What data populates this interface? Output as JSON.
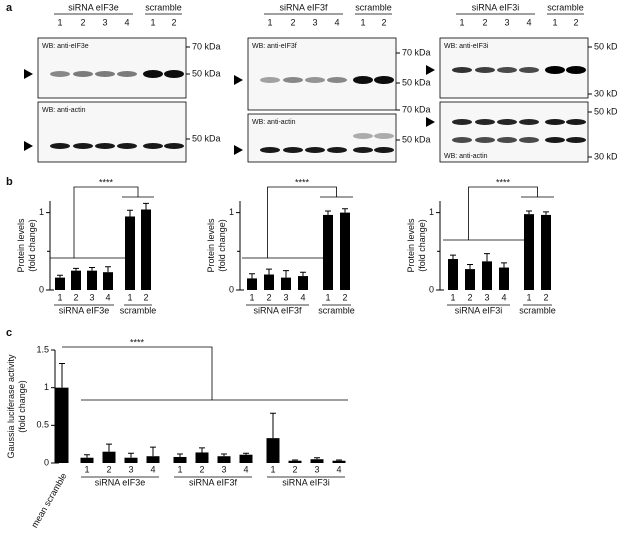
{
  "panel_labels": [
    "a",
    "b",
    "c"
  ],
  "blots": [
    {
      "groups": [
        "siRNA eIF3e",
        "scramble"
      ],
      "lanes": [
        "1",
        "2",
        "3",
        "4",
        "1",
        "2"
      ],
      "top": {
        "wb": "WB: anti-eIF3e",
        "markers": [
          "70 kDa",
          "50 kDa"
        ]
      },
      "bottom": {
        "wb": "WB: anti-actin",
        "markers": [
          "50 kDa"
        ]
      }
    },
    {
      "groups": [
        "siRNA eIF3f",
        "scramble"
      ],
      "lanes": [
        "1",
        "2",
        "3",
        "4",
        "1",
        "2"
      ],
      "top": {
        "wb": "WB: anti-eIF3f",
        "markers": [
          "70 kDa",
          "50 kDa"
        ]
      },
      "bottom": {
        "wb": "WB: anti-actin",
        "markers": [
          "70 kDa",
          "50 kDa"
        ]
      }
    },
    {
      "groups": [
        "siRNA eIF3i",
        "scramble"
      ],
      "lanes": [
        "1",
        "2",
        "3",
        "4",
        "1",
        "2"
      ],
      "top": {
        "wb": "WB: anti-eIF3i",
        "markers": [
          "50 kDa",
          "30 kDa"
        ]
      },
      "bottom": {
        "wb": "WB: anti-actin",
        "markers": [
          "50 kDa",
          "30 kDa"
        ]
      }
    }
  ],
  "chart_data": [
    {
      "type": "bar",
      "ylabel": [
        "Protein levels",
        "(fold change)"
      ],
      "color": "#000000",
      "ylim": [
        0,
        1.15
      ],
      "yticks": [
        0,
        1
      ],
      "minor_yticks": [
        0.5
      ],
      "annotation": "****",
      "groups": [
        {
          "name": "siRNA eIF3e",
          "categories": [
            "1",
            "2",
            "3",
            "4"
          ],
          "values": [
            0.16,
            0.25,
            0.25,
            0.23
          ],
          "errors": [
            0.03,
            0.03,
            0.04,
            0.07
          ]
        },
        {
          "name": "scramble",
          "categories": [
            "1",
            "2"
          ],
          "values": [
            0.95,
            1.04
          ],
          "errors": [
            0.08,
            0.08
          ]
        }
      ]
    },
    {
      "type": "bar",
      "ylabel": [
        "Protein levels",
        "(fold change)"
      ],
      "color": "#000000",
      "ylim": [
        0,
        1.15
      ],
      "yticks": [
        0,
        1
      ],
      "minor_yticks": [
        0.5
      ],
      "annotation": "****",
      "groups": [
        {
          "name": "siRNA eIF3f",
          "categories": [
            "1",
            "2",
            "3",
            "4"
          ],
          "values": [
            0.15,
            0.2,
            0.16,
            0.18
          ],
          "errors": [
            0.06,
            0.07,
            0.09,
            0.05
          ]
        },
        {
          "name": "scramble",
          "categories": [
            "1",
            "2"
          ],
          "values": [
            0.97,
            1.0
          ],
          "errors": [
            0.05,
            0.05
          ]
        }
      ]
    },
    {
      "type": "bar",
      "ylabel": [
        "Protein levels",
        "(fold change)"
      ],
      "color": "#000000",
      "ylim": [
        0,
        1.15
      ],
      "yticks": [
        0,
        1
      ],
      "minor_yticks": [
        0.5
      ],
      "annotation": "****",
      "groups": [
        {
          "name": "siRNA eIF3i",
          "categories": [
            "1",
            "2",
            "3",
            "4"
          ],
          "values": [
            0.4,
            0.27,
            0.37,
            0.29
          ],
          "errors": [
            0.05,
            0.06,
            0.1,
            0.06
          ]
        },
        {
          "name": "scramble",
          "categories": [
            "1",
            "2"
          ],
          "values": [
            0.98,
            0.97
          ],
          "errors": [
            0.04,
            0.04
          ]
        }
      ]
    },
    {
      "type": "bar",
      "ylabel": [
        "Gaussia luciferase activity",
        "(fold change)"
      ],
      "color": "#000000",
      "ylim": [
        0,
        1.5
      ],
      "yticks": [
        0,
        0.5,
        1,
        1.5
      ],
      "annotation": "****",
      "categories": [
        "mean scramble"
      ],
      "values": [
        1.0
      ],
      "errors": [
        0.32
      ],
      "groups": [
        {
          "name": "siRNA eIF3e",
          "categories": [
            "1",
            "2",
            "3",
            "4"
          ],
          "values": [
            0.07,
            0.15,
            0.07,
            0.09
          ],
          "errors": [
            0.04,
            0.1,
            0.06,
            0.12
          ]
        },
        {
          "name": "siRNA eIF3f",
          "categories": [
            "1",
            "2",
            "3",
            "4"
          ],
          "values": [
            0.08,
            0.14,
            0.09,
            0.11
          ],
          "errors": [
            0.04,
            0.06,
            0.03,
            0.02
          ]
        },
        {
          "name": "siRNA eIF3i",
          "categories": [
            "1",
            "2",
            "3",
            "4"
          ],
          "values": [
            0.33,
            0.03,
            0.05,
            0.03
          ],
          "errors": [
            0.33,
            0.01,
            0.02,
            0.01
          ]
        }
      ]
    }
  ]
}
